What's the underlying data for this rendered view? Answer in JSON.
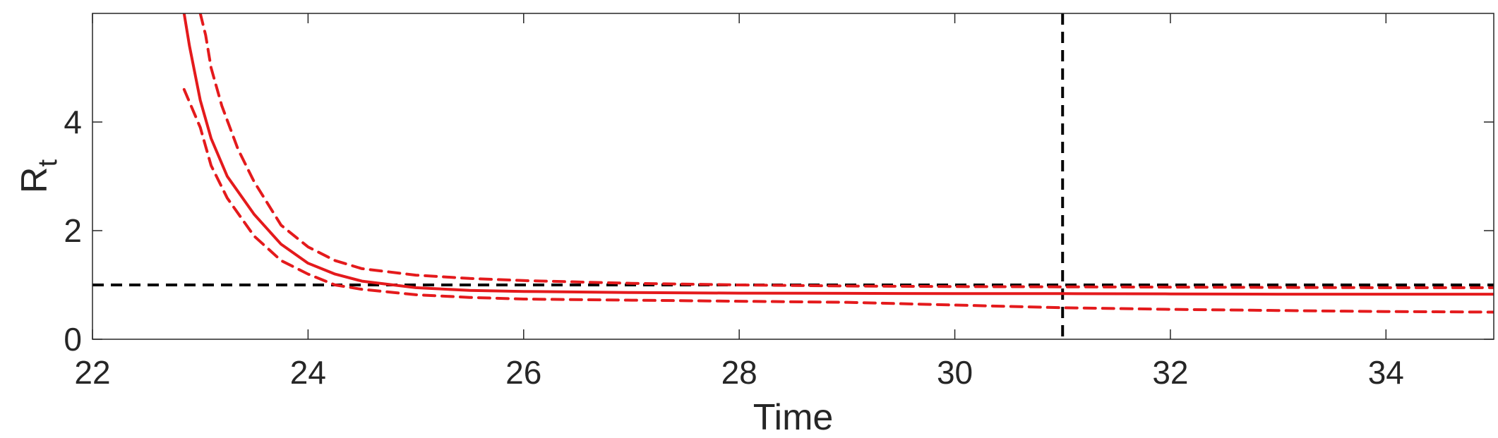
{
  "chart_data": {
    "type": "line",
    "xlabel": "Time",
    "ylabel": "R",
    "ylabel_subscript": "t",
    "xlim": [
      22,
      35
    ],
    "ylim": [
      0,
      6
    ],
    "xticks": [
      22,
      24,
      26,
      28,
      30,
      32,
      34
    ],
    "yticks": [
      0,
      2,
      4
    ],
    "grid": false,
    "colors": {
      "estimate": "#e41a1c",
      "reference": "#000000"
    },
    "series": [
      {
        "style": "solid",
        "x": [
          22.85,
          22.9,
          23.0,
          23.1,
          23.25,
          23.5,
          23.75,
          24.0,
          24.25,
          24.5,
          25.0,
          25.5,
          26.0,
          27.0,
          28.0,
          29.0,
          30.0,
          31.0,
          32.0,
          33.0,
          34.0,
          35.0
        ],
        "y": [
          6.0,
          5.4,
          4.4,
          3.7,
          3.0,
          2.3,
          1.75,
          1.4,
          1.2,
          1.07,
          0.95,
          0.9,
          0.88,
          0.86,
          0.85,
          0.845,
          0.84,
          0.84,
          0.835,
          0.83,
          0.83,
          0.83
        ]
      },
      {
        "style": "dashed",
        "x": [
          23.0,
          23.05,
          23.1,
          23.2,
          23.35,
          23.5,
          23.75,
          24.0,
          24.25,
          24.5,
          25.0,
          25.5,
          26.0,
          27.0,
          28.0,
          29.0,
          30.0,
          31.0,
          32.0,
          33.0,
          34.0,
          35.0
        ],
        "y": [
          6.0,
          5.6,
          5.0,
          4.3,
          3.5,
          2.9,
          2.1,
          1.7,
          1.45,
          1.3,
          1.18,
          1.12,
          1.08,
          1.03,
          1.0,
          0.98,
          0.97,
          0.965,
          0.96,
          0.955,
          0.95,
          0.95
        ]
      },
      {
        "style": "dashed",
        "x": [
          22.85,
          23.0,
          23.1,
          23.25,
          23.5,
          23.75,
          24.0,
          24.25,
          24.5,
          25.0,
          25.5,
          26.0,
          27.0,
          28.0,
          29.0,
          30.0,
          31.0,
          32.0,
          33.0,
          34.0,
          35.0
        ],
        "y": [
          4.6,
          3.9,
          3.2,
          2.6,
          1.9,
          1.45,
          1.2,
          1.0,
          0.92,
          0.82,
          0.77,
          0.74,
          0.72,
          0.7,
          0.68,
          0.63,
          0.58,
          0.55,
          0.53,
          0.51,
          0.5
        ]
      }
    ],
    "reference_lines": [
      {
        "orientation": "horizontal",
        "value": 1,
        "style": "dashed"
      },
      {
        "orientation": "vertical",
        "value": 31,
        "style": "dashed"
      }
    ]
  }
}
